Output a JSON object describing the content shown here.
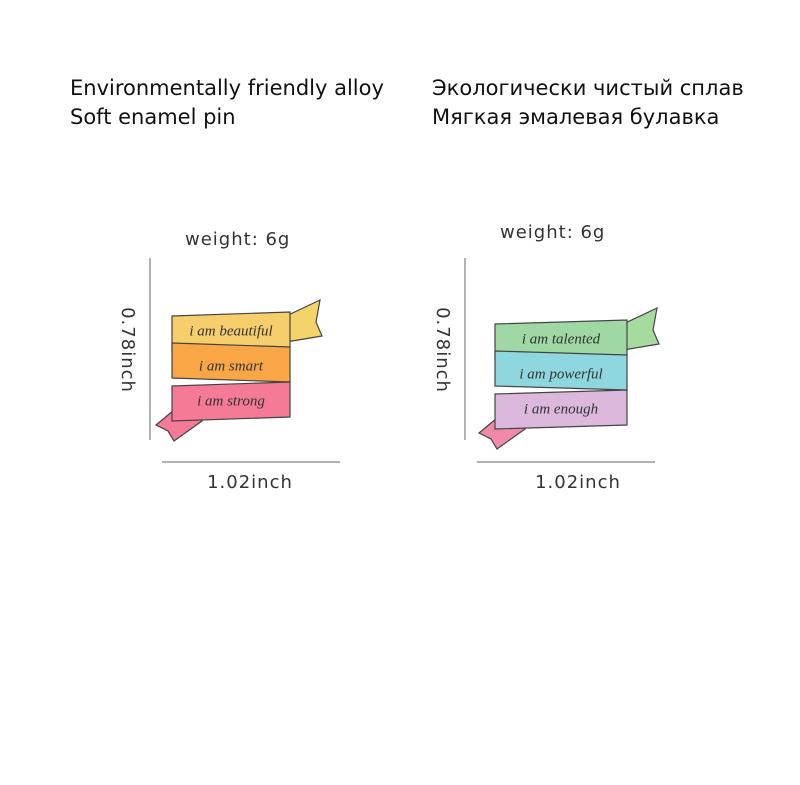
{
  "header": {
    "en": [
      "Environmentally friendly alloy",
      "Soft enamel pin"
    ],
    "ru": [
      "Экологически чистый сплав",
      "Мягкая эмалевая булавка"
    ]
  },
  "pins": [
    {
      "weight": "weight:  6g",
      "height": "0.78inch",
      "width": "1.02inch",
      "lines": [
        "i am beautiful",
        "i am smart",
        "i am strong"
      ]
    },
    {
      "weight": "weight:  6g",
      "height": "0.78inch",
      "width": "1.02inch",
      "lines": [
        "i am talented",
        "i am powerful",
        "i am enough"
      ]
    }
  ]
}
